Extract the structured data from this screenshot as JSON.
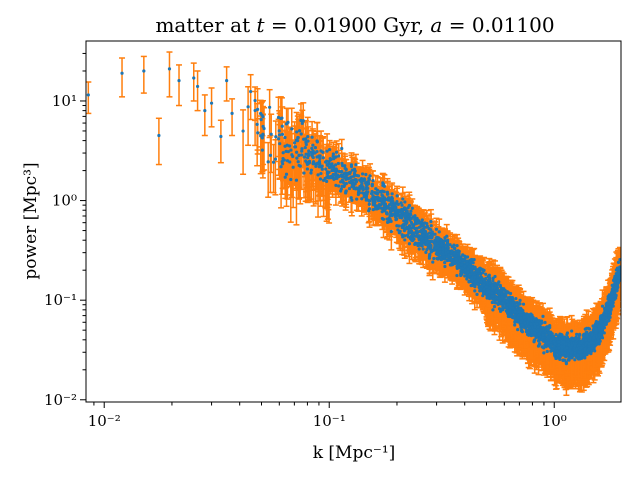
{
  "chart_data": {
    "type": "scatter",
    "title": "matter at t = 0.01900 Gyr, a = 0.01100",
    "title_parts": {
      "pre": "matter at ",
      "t_var": "t",
      "t_val": " = 0.01900 Gyr, ",
      "a_var": "a",
      "a_val": " = 0.01100"
    },
    "xlabel": "k [Mpc⁻¹]",
    "ylabel": "power [Mpc³]",
    "xscale": "log",
    "yscale": "log",
    "xlim": [
      0.0083,
      1.98
    ],
    "ylim": [
      0.0095,
      40
    ],
    "x_ticks": [
      "10⁻²",
      "10⁻¹",
      "10⁰"
    ],
    "y_ticks": [
      "10⁻²",
      "10⁻¹",
      "10⁰",
      "10¹"
    ],
    "grid": false,
    "legend": "none",
    "colors": {
      "points": "#1f77b4",
      "errorbars": "#ff7f0e"
    },
    "series": [
      {
        "marker": "point",
        "has_errorbars": true,
        "trend": {
          "k": [
            0.0085,
            0.012,
            0.015,
            0.02,
            0.025,
            0.03,
            0.04,
            0.05,
            0.06,
            0.08,
            0.1,
            0.15,
            0.2,
            0.3,
            0.4,
            0.5,
            0.6,
            0.7,
            0.8,
            0.9,
            1.0,
            1.2,
            1.4,
            1.6,
            1.8,
            1.95
          ],
          "power": [
            12,
            15,
            14,
            12,
            10,
            9,
            7.5,
            6,
            4.5,
            3.0,
            2.2,
            1.2,
            0.75,
            0.35,
            0.22,
            0.14,
            0.1,
            0.07,
            0.055,
            0.045,
            0.036,
            0.032,
            0.036,
            0.05,
            0.1,
            0.19
          ]
        },
        "points": [
          {
            "k": 0.0085,
            "power": 11.5,
            "err": 4.0
          },
          {
            "k": 0.012,
            "power": 19,
            "err": 8
          },
          {
            "k": 0.015,
            "power": 20,
            "err": 8
          },
          {
            "k": 0.0175,
            "power": 4.5,
            "err": 2.2
          },
          {
            "k": 0.0195,
            "power": 21,
            "err": 10
          },
          {
            "k": 0.0215,
            "power": 16,
            "err": 7
          },
          {
            "k": 0.025,
            "power": 17,
            "err": 7
          },
          {
            "k": 0.026,
            "power": 14,
            "err": 6
          },
          {
            "k": 0.028,
            "power": 8.0,
            "err": 3.5
          },
          {
            "k": 0.03,
            "power": 9.5,
            "err": 4
          },
          {
            "k": 0.033,
            "power": 4.4,
            "err": 2
          },
          {
            "k": 0.035,
            "power": 16,
            "err": 6
          },
          {
            "k": 0.037,
            "power": 7.5,
            "err": 3
          }
        ]
      }
    ]
  }
}
